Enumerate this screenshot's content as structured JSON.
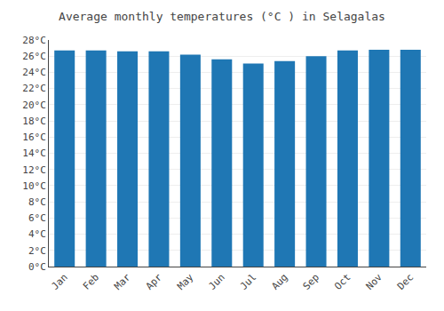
{
  "chart_data": {
    "type": "bar",
    "title": "Average monthly temperatures (°C ) in Selagalas",
    "categories": [
      "Jan",
      "Feb",
      "Mar",
      "Apr",
      "May",
      "Jun",
      "Jul",
      "Aug",
      "Sep",
      "Oct",
      "Nov",
      "Dec"
    ],
    "values": [
      26.7,
      26.7,
      26.6,
      26.6,
      26.2,
      25.6,
      25.1,
      25.4,
      26.0,
      26.7,
      26.8,
      26.8
    ],
    "ylim": [
      0,
      28
    ],
    "yticks": [
      {
        "value": 0,
        "label": "0°C"
      },
      {
        "value": 2,
        "label": "2°C"
      },
      {
        "value": 4,
        "label": "4°C"
      },
      {
        "value": 6,
        "label": "6°C"
      },
      {
        "value": 8,
        "label": "8°C"
      },
      {
        "value": 10,
        "label": "10°C"
      },
      {
        "value": 12,
        "label": "12°C"
      },
      {
        "value": 14,
        "label": "14°C"
      },
      {
        "value": 16,
        "label": "16°C"
      },
      {
        "value": 18,
        "label": "18°C"
      },
      {
        "value": 20,
        "label": "20°C"
      },
      {
        "value": 22,
        "label": "22°C"
      },
      {
        "value": 24,
        "label": "24°C"
      },
      {
        "value": 26,
        "label": "26°C"
      },
      {
        "value": 28,
        "label": "28°C"
      }
    ],
    "grid": true
  }
}
